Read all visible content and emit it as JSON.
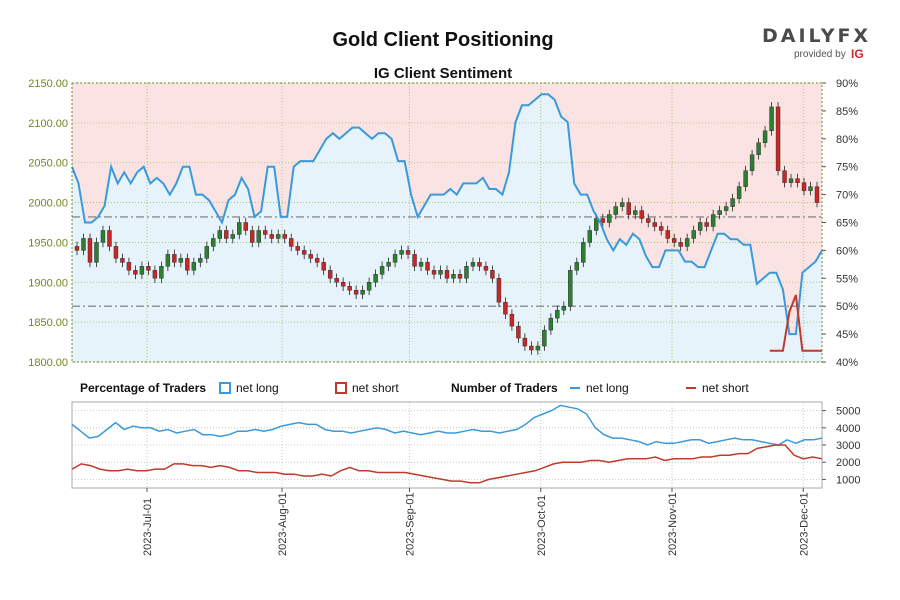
{
  "header": {
    "title": "Gold Client Positioning",
    "subtitle": "IG Client Sentiment",
    "logo_text": "DAILYFX",
    "logo_sub": "provided by",
    "logo_brand": "IG"
  },
  "colors": {
    "long_line": "#3a9ad9",
    "short_line": "#c0392b",
    "long_fill": "#e6f3fb",
    "short_fill": "#fbe3e3",
    "candle_up": "#2e7d32",
    "candle_down": "#c62828",
    "price_axis": "#6a8a24",
    "grid": "#9bbf5a"
  },
  "chart_data": [
    {
      "type": "candlestick",
      "title": "IG Client Sentiment",
      "y_left_label": "Price",
      "y_left_ticks": [
        "2150.00",
        "2100.00",
        "2050.00",
        "2000.00",
        "1950.00",
        "1900.00",
        "1850.00",
        "1800.00"
      ],
      "y_left_range": [
        1800,
        2150
      ],
      "y_right_ticks": [
        "90%",
        "85%",
        "80%",
        "75%",
        "70%",
        "65%",
        "60%",
        "55%",
        "50%",
        "45%",
        "40%"
      ],
      "y_right_range": [
        40,
        90
      ],
      "reference_lines_pct": [
        66,
        50
      ],
      "x_dates": [
        "2023-Jul-01",
        "2023-Aug-01",
        "2023-Sep-01",
        "2023-Oct-01",
        "2023-Nov-01",
        "2023-Dec-01"
      ],
      "price_close": [
        1940,
        1955,
        1925,
        1950,
        1965,
        1945,
        1930,
        1925,
        1915,
        1910,
        1920,
        1915,
        1905,
        1920,
        1935,
        1925,
        1930,
        1915,
        1925,
        1930,
        1945,
        1955,
        1965,
        1955,
        1960,
        1975,
        1965,
        1950,
        1965,
        1960,
        1955,
        1960,
        1955,
        1945,
        1940,
        1935,
        1930,
        1925,
        1915,
        1905,
        1900,
        1895,
        1890,
        1885,
        1890,
        1900,
        1910,
        1920,
        1925,
        1935,
        1940,
        1935,
        1920,
        1925,
        1915,
        1910,
        1915,
        1905,
        1910,
        1905,
        1920,
        1925,
        1920,
        1915,
        1905,
        1875,
        1860,
        1845,
        1830,
        1820,
        1815,
        1820,
        1840,
        1855,
        1865,
        1870,
        1915,
        1925,
        1950,
        1965,
        1980,
        1975,
        1985,
        1995,
        2000,
        1985,
        1990,
        1980,
        1975,
        1970,
        1965,
        1955,
        1950,
        1945,
        1955,
        1965,
        1975,
        1970,
        1985,
        1990,
        1995,
        2005,
        2020,
        2040,
        2060,
        2075,
        2090,
        2120,
        2040,
        2025,
        2030,
        2025,
        2015,
        2020,
        2000
      ],
      "net_long_pct": [
        75,
        72,
        65,
        65,
        66,
        68,
        75,
        72,
        74,
        72,
        74,
        75,
        72,
        73,
        72,
        70,
        72,
        75,
        75,
        70,
        70,
        69,
        67,
        65,
        69,
        70,
        73,
        71,
        66,
        67,
        75,
        75,
        66,
        66,
        75,
        76,
        76,
        76,
        78,
        80,
        81,
        80,
        81,
        82,
        82,
        81,
        80,
        81,
        81,
        80,
        76,
        76,
        70,
        66,
        68,
        70,
        70,
        70,
        71,
        70,
        72,
        72,
        72,
        73,
        71,
        71,
        70,
        74,
        83,
        86,
        86,
        87,
        88,
        88,
        87,
        84,
        83,
        72,
        70,
        70,
        67,
        65,
        62,
        60,
        62,
        61,
        63,
        62,
        59,
        57,
        57,
        60,
        60,
        60,
        58,
        58,
        57,
        57,
        60,
        63,
        63,
        62,
        62,
        61,
        61,
        54,
        55,
        56,
        56,
        53,
        45,
        45,
        56,
        57,
        58,
        60
      ],
      "series_legend": [
        {
          "name": "net long",
          "color": "#3a9ad9"
        },
        {
          "name": "net short",
          "color": "#c0392b"
        }
      ]
    },
    {
      "type": "line",
      "title": "Number of Traders",
      "y_ticks": [
        "5000",
        "4000",
        "3000",
        "2000",
        "1000"
      ],
      "y_range": [
        500,
        5500
      ],
      "series": [
        {
          "name": "net long",
          "values": [
            4200,
            3800,
            3400,
            3500,
            3900,
            4300,
            3900,
            4100,
            4000,
            4000,
            3800,
            3900,
            3700,
            3800,
            3900,
            3600,
            3600,
            3500,
            3600,
            3800,
            3800,
            3900,
            3800,
            3900,
            4100,
            4200,
            4300,
            4200,
            4200,
            3900,
            3800,
            3800,
            3700,
            3800,
            3900,
            4000,
            3900,
            3700,
            3800,
            3700,
            3600,
            3700,
            3800,
            3700,
            3700,
            3800,
            3900,
            3800,
            3800,
            3700,
            3800,
            3900,
            4200,
            4600,
            4800,
            5000,
            5300,
            5200,
            5100,
            4800,
            4000,
            3600,
            3400,
            3400,
            3300,
            3200,
            3000,
            3200,
            3100,
            3100,
            3200,
            3300,
            3300,
            3100,
            3200,
            3300,
            3400,
            3300,
            3300,
            3200,
            3100,
            3000,
            3300,
            3100,
            3300,
            3300,
            3400
          ]
        },
        {
          "name": "net short",
          "values": [
            1600,
            1900,
            1800,
            1600,
            1500,
            1500,
            1600,
            1500,
            1500,
            1600,
            1600,
            1900,
            1900,
            1800,
            1800,
            1700,
            1800,
            1700,
            1500,
            1500,
            1400,
            1400,
            1400,
            1300,
            1300,
            1200,
            1200,
            1300,
            1200,
            1500,
            1700,
            1500,
            1500,
            1400,
            1400,
            1400,
            1400,
            1300,
            1200,
            1100,
            1000,
            900,
            900,
            800,
            800,
            1000,
            1100,
            1200,
            1300,
            1400,
            1500,
            1700,
            1900,
            2000,
            2000,
            2000,
            2100,
            2100,
            2000,
            2100,
            2200,
            2200,
            2200,
            2300,
            2100,
            2200,
            2200,
            2200,
            2300,
            2300,
            2400,
            2400,
            2500,
            2500,
            2800,
            2900,
            3000,
            3000,
            2400,
            2200,
            2300,
            2200
          ]
        }
      ],
      "legend": [
        {
          "group": "Percentage of Traders",
          "items": [
            {
              "name": "net long",
              "color": "#3a9ad9"
            },
            {
              "name": "net short",
              "color": "#c0392b"
            }
          ]
        },
        {
          "group": "Number of Traders",
          "items": [
            {
              "name": "net long",
              "color": "#3a9ad9"
            },
            {
              "name": "net short",
              "color": "#c0392b"
            }
          ]
        }
      ]
    }
  ]
}
